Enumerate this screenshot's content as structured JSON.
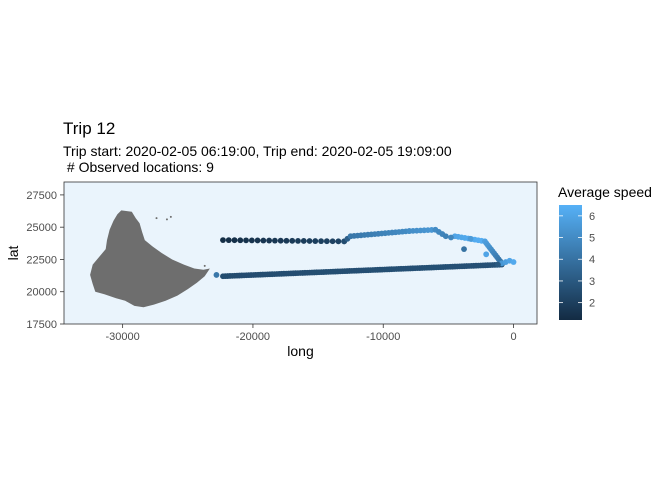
{
  "chart_data": {
    "type": "scatter",
    "title": "Trip 12",
    "subtitle_lines": [
      "Trip start: 2020-02-05 06:19:00, Trip end: 2020-02-05 19:09:00",
      " # Observed locations: 9"
    ],
    "xlabel": "long",
    "ylabel": "lat",
    "xlim": [
      -34500,
      1800
    ],
    "ylim": [
      17500,
      28500
    ],
    "x_ticks": [
      -30000,
      -20000,
      -10000,
      0
    ],
    "x_tick_labels": [
      "-30000",
      "-20000",
      "-10000",
      "0"
    ],
    "y_ticks": [
      17500,
      20000,
      22500,
      25000,
      27500
    ],
    "y_tick_labels": [
      "17500",
      "20000",
      "22500",
      "25000",
      "27500"
    ],
    "grid": false,
    "panel_background": "#eaf4fc",
    "land_color": "#6e6e6e",
    "legend": {
      "title": "Average speed",
      "placement": "right",
      "min": 1.2,
      "max": 6.5,
      "breaks": [
        2,
        3,
        4,
        5,
        6
      ],
      "break_labels": [
        "2",
        "3",
        "4",
        "5",
        "6"
      ],
      "low_color": "#132b43",
      "high_color": "#56b1f7"
    },
    "island_outline": [
      [
        -30100,
        26300
      ],
      [
        -29300,
        26200
      ],
      [
        -29000,
        25700
      ],
      [
        -28700,
        25300
      ],
      [
        -28500,
        24600
      ],
      [
        -28300,
        24000
      ],
      [
        -27700,
        23500
      ],
      [
        -27000,
        23000
      ],
      [
        -26200,
        22500
      ],
      [
        -25300,
        22100
      ],
      [
        -24500,
        21800
      ],
      [
        -23800,
        21700
      ],
      [
        -23300,
        21800
      ],
      [
        -23700,
        21200
      ],
      [
        -24300,
        20700
      ],
      [
        -25000,
        20200
      ],
      [
        -25800,
        19700
      ],
      [
        -26700,
        19300
      ],
      [
        -27600,
        19000
      ],
      [
        -28400,
        18800
      ],
      [
        -29100,
        18900
      ],
      [
        -29800,
        19300
      ],
      [
        -30500,
        19500
      ],
      [
        -31400,
        19800
      ],
      [
        -32100,
        20000
      ],
      [
        -32300,
        20600
      ],
      [
        -32500,
        21300
      ],
      [
        -32300,
        22100
      ],
      [
        -31800,
        22700
      ],
      [
        -31300,
        23300
      ],
      [
        -31200,
        24000
      ],
      [
        -31000,
        24800
      ],
      [
        -30700,
        25500
      ],
      [
        -30400,
        26000
      ]
    ],
    "islets": [
      [
        -27400,
        25700
      ],
      [
        -26600,
        25600
      ],
      [
        -26300,
        25800
      ],
      [
        -23700,
        22000
      ]
    ],
    "segments": [
      {
        "from": [
          -22300,
          21200
        ],
        "to": [
          -900,
          22100
        ],
        "n": 120,
        "speed_from": 2.5,
        "speed_to": 2.7
      },
      {
        "from": [
          -22300,
          24000
        ],
        "to": [
          -13000,
          23900
        ],
        "n": 22,
        "speed_from": 1.3,
        "speed_to": 2.2
      },
      {
        "from": [
          -13000,
          23900
        ],
        "to": [
          -12500,
          24300
        ],
        "n": 3,
        "speed_from": 2.5,
        "speed_to": 4.0
      },
      {
        "from": [
          -12500,
          24300
        ],
        "to": [
          -8000,
          24700
        ],
        "n": 18,
        "speed_from": 4.2,
        "speed_to": 5.0
      },
      {
        "from": [
          -8000,
          24700
        ],
        "to": [
          -6000,
          24800
        ],
        "n": 8,
        "speed_from": 5.1,
        "speed_to": 5.5
      },
      {
        "from": [
          -6000,
          24800
        ],
        "to": [
          -5200,
          24300
        ],
        "n": 4,
        "speed_from": 5.0,
        "speed_to": 4.6
      },
      {
        "from": [
          -4500,
          24300
        ],
        "to": [
          -2200,
          23900
        ],
        "n": 10,
        "speed_from": 6.0,
        "speed_to": 6.4
      },
      {
        "from": [
          -2200,
          23900
        ],
        "to": [
          -900,
          22200
        ],
        "n": 12,
        "speed_from": 5.8,
        "speed_to": 4.0
      },
      {
        "from": [
          -900,
          22200
        ],
        "to": [
          -300,
          22400
        ],
        "n": 3,
        "speed_from": 5.5,
        "speed_to": 6.0
      }
    ],
    "points": [
      {
        "x": -22800,
        "y": 21300,
        "speed": 4.2
      },
      {
        "x": -4800,
        "y": 24200,
        "speed": 4.8
      },
      {
        "x": -3300,
        "y": 24100,
        "speed": 5.6
      },
      {
        "x": -3800,
        "y": 23300,
        "speed": 4.0
      },
      {
        "x": -2100,
        "y": 22900,
        "speed": 6.0
      },
      {
        "x": 0,
        "y": 22300,
        "speed": 6.2
      },
      {
        "x": -1200,
        "y": 22100,
        "speed": 3.0
      }
    ]
  }
}
